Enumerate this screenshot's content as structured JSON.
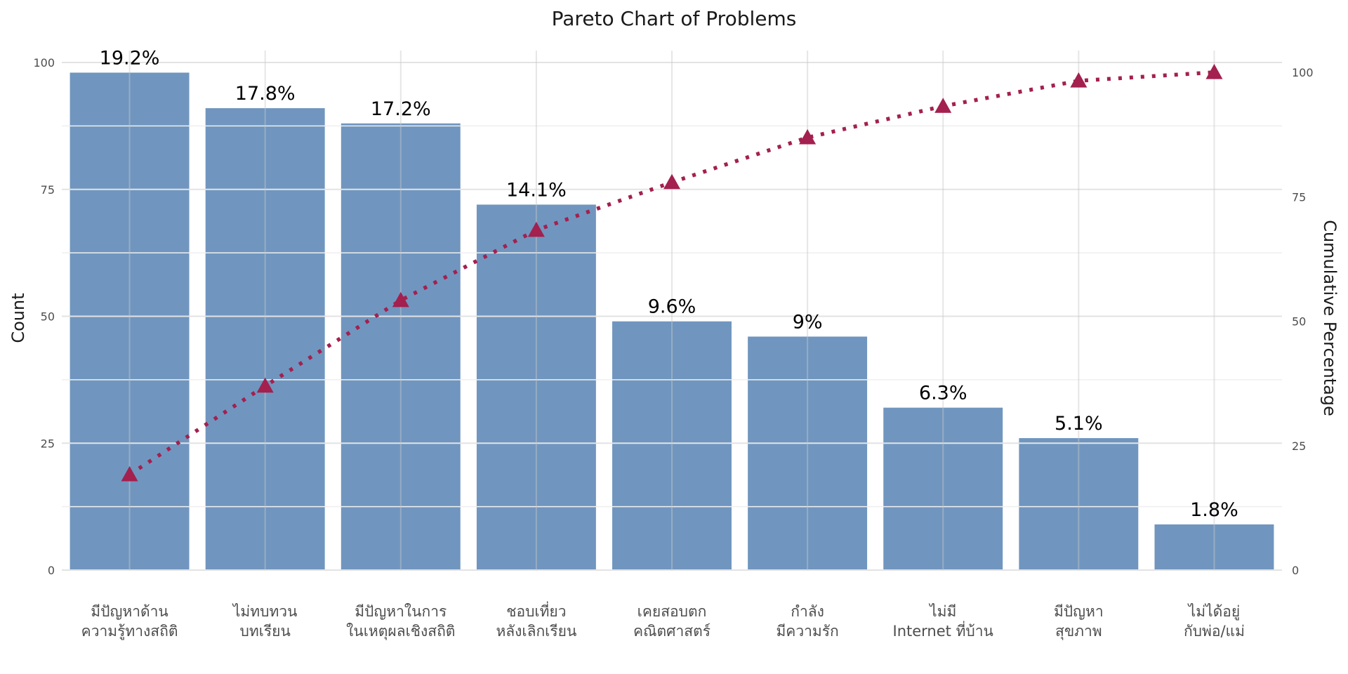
{
  "chart_data": {
    "type": "bar",
    "title": "Pareto Chart of Problems",
    "xlabel": "",
    "ylabel": "Count",
    "y2label": "Cumulative Percentage",
    "ylim": [
      0,
      100
    ],
    "y2lim": [
      0,
      100
    ],
    "yticks": [
      0,
      25,
      50,
      75,
      100
    ],
    "y2ticks": [
      0,
      25,
      50,
      75,
      100
    ],
    "grid": true,
    "categories": [
      [
        "มีปัญหาด้าน",
        "ความรู้ทางสถิติ"
      ],
      [
        "ไม่ทบทวน",
        "บทเรียน"
      ],
      [
        "มีปัญหาในการ",
        "ในเหตุผลเชิงสถิติ"
      ],
      [
        "ชอบเที่ยว",
        "หลังเลิกเรียน"
      ],
      [
        "เคยสอบตก",
        "คณิตศาสตร์"
      ],
      [
        "กำลัง",
        "มีความรัก"
      ],
      [
        "ไม่มี",
        "Internet ที่บ้าน"
      ],
      [
        "มีปัญหา",
        "สุขภาพ"
      ],
      [
        "ไม่ได้อยู่",
        "กับพ่อ/แม่"
      ]
    ],
    "series": [
      {
        "type": "bar",
        "values": [
          98,
          91,
          88,
          72,
          49,
          46,
          32,
          26,
          9
        ],
        "labels": [
          "19.2%",
          "17.8%",
          "17.2%",
          "14.1%",
          "9.6%",
          "9%",
          "6.3%",
          "5.1%",
          "1.8%"
        ]
      },
      {
        "type": "line",
        "axis": "right",
        "values": [
          19.2,
          37.0,
          54.2,
          68.3,
          77.9,
          86.9,
          93.2,
          98.3,
          100.0
        ]
      }
    ],
    "colors": {
      "bar": "#7096bf",
      "line": "#a3204f",
      "grid": "#e3e3e3"
    }
  }
}
